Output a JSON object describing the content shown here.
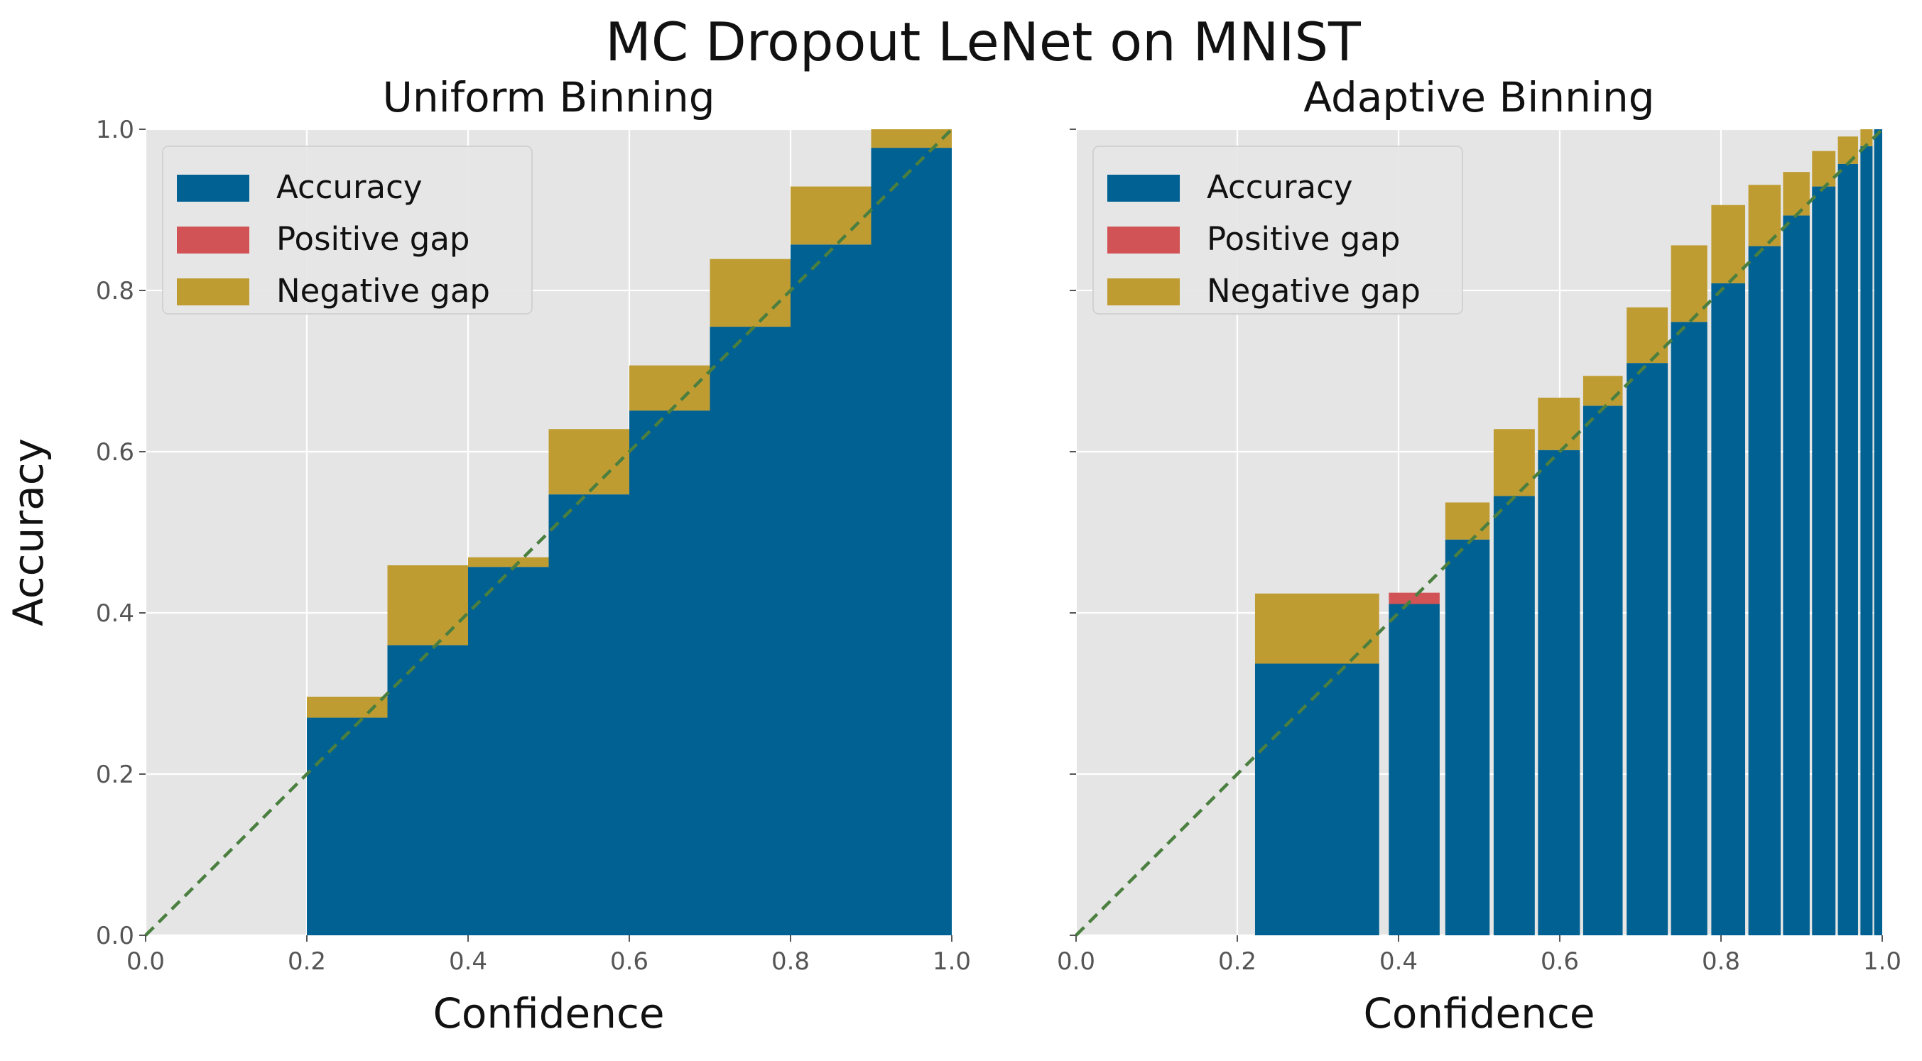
{
  "figure": {
    "title": "MC Dropout LeNet on MNIST"
  },
  "colors": {
    "plot_background": "#E5E5E5",
    "grid": "#FFFFFF",
    "accuracy": "#006192",
    "positive_gap": "#D15355",
    "negative_gap": "#BF9C31",
    "diagonal": "#4B7F40"
  },
  "chart_data": [
    {
      "type": "bar",
      "title": "Uniform Binning",
      "xlabel": "Confidence",
      "ylabel": "Accuracy",
      "xlim": [
        0.0,
        1.0
      ],
      "ylim": [
        0.0,
        1.0
      ],
      "xticks": [
        "0.0",
        "0.2",
        "0.4",
        "0.6",
        "0.8",
        "1.0"
      ],
      "yticks": [
        "0.0",
        "0.2",
        "0.4",
        "0.6",
        "0.8",
        "1.0"
      ],
      "grid": true,
      "legend": {
        "placement": "upper-left",
        "entries": [
          "Accuracy",
          "Positive gap",
          "Negative gap"
        ]
      },
      "diagonal": true,
      "bins": [
        {
          "left": 0.2,
          "right": 0.3,
          "accuracy": 0.27,
          "confidence": 0.296
        },
        {
          "left": 0.3,
          "right": 0.4,
          "accuracy": 0.36,
          "confidence": 0.459
        },
        {
          "left": 0.4,
          "right": 0.5,
          "accuracy": 0.457,
          "confidence": 0.469
        },
        {
          "left": 0.5,
          "right": 0.6,
          "accuracy": 0.547,
          "confidence": 0.628
        },
        {
          "left": 0.6,
          "right": 0.7,
          "accuracy": 0.651,
          "confidence": 0.707
        },
        {
          "left": 0.7,
          "right": 0.8,
          "accuracy": 0.755,
          "confidence": 0.839
        },
        {
          "left": 0.8,
          "right": 0.9,
          "accuracy": 0.857,
          "confidence": 0.929
        },
        {
          "left": 0.9,
          "right": 1.0,
          "accuracy": 0.977,
          "confidence": 1.0
        }
      ]
    },
    {
      "type": "bar",
      "title": "Adaptive Binning",
      "xlabel": "Confidence",
      "ylabel": "",
      "xlim": [
        0.0,
        1.0
      ],
      "ylim": [
        0.0,
        1.0
      ],
      "xticks": [
        "0.0",
        "0.2",
        "0.4",
        "0.6",
        "0.8",
        "1.0"
      ],
      "yticks": [],
      "grid": true,
      "legend": {
        "placement": "upper-left",
        "entries": [
          "Accuracy",
          "Positive gap",
          "Negative gap"
        ]
      },
      "diagonal": true,
      "bins": [
        {
          "left": 0.222,
          "right": 0.376,
          "accuracy": 0.337,
          "confidence": 0.424
        },
        {
          "left": 0.388,
          "right": 0.451,
          "accuracy": 0.425,
          "confidence": 0.411
        },
        {
          "left": 0.458,
          "right": 0.513,
          "accuracy": 0.491,
          "confidence": 0.537
        },
        {
          "left": 0.518,
          "right": 0.569,
          "accuracy": 0.545,
          "confidence": 0.628
        },
        {
          "left": 0.573,
          "right": 0.625,
          "accuracy": 0.602,
          "confidence": 0.667
        },
        {
          "left": 0.629,
          "right": 0.678,
          "accuracy": 0.657,
          "confidence": 0.694
        },
        {
          "left": 0.683,
          "right": 0.734,
          "accuracy": 0.71,
          "confidence": 0.779
        },
        {
          "left": 0.738,
          "right": 0.783,
          "accuracy": 0.761,
          "confidence": 0.856
        },
        {
          "left": 0.788,
          "right": 0.83,
          "accuracy": 0.809,
          "confidence": 0.906
        },
        {
          "left": 0.834,
          "right": 0.874,
          "accuracy": 0.855,
          "confidence": 0.931
        },
        {
          "left": 0.877,
          "right": 0.91,
          "accuracy": 0.893,
          "confidence": 0.947
        },
        {
          "left": 0.913,
          "right": 0.942,
          "accuracy": 0.929,
          "confidence": 0.973
        },
        {
          "left": 0.945,
          "right": 0.97,
          "accuracy": 0.957,
          "confidence": 0.991
        },
        {
          "left": 0.973,
          "right": 0.988,
          "accuracy": 0.979,
          "confidence": 1.0
        },
        {
          "left": 0.99,
          "right": 1.0,
          "accuracy": 1.0,
          "confidence": 1.0
        }
      ]
    }
  ]
}
